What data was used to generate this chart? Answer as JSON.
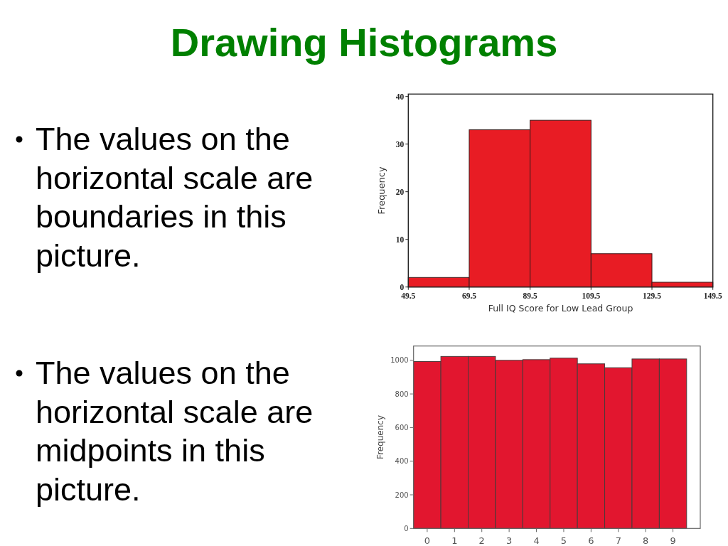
{
  "chart_data": [
    {
      "type": "other",
      "title": "Drawing Histograms",
      "annotations": [
        "The values on the horizontal scale are boundaries in this picture.",
        "The values on the horizontal scale are midpoints in this picture."
      ]
    },
    {
      "type": "histogram",
      "bins": [
        49.5,
        69.5,
        89.5,
        109.5,
        129.5,
        149.5
      ],
      "values": [
        2,
        33,
        35,
        7,
        1
      ],
      "color": "#e81c24",
      "xlim": [
        49.5,
        149.5
      ],
      "xticks": [
        49.5,
        69.5,
        89.5,
        109.5,
        129.5,
        149.5
      ],
      "ylim": [
        0,
        40.5
      ],
      "yticks": [
        0,
        10,
        20,
        30,
        40
      ],
      "xlabel": "Full IQ Score for Low Lead Group",
      "ylabel": "Frequency"
    },
    {
      "type": "histogram",
      "bins": [
        -0.5,
        0.5,
        1.5,
        2.5,
        3.5,
        4.5,
        5.5,
        6.5,
        7.5,
        8.5,
        9.5
      ],
      "values": [
        993,
        1023,
        1023,
        1000,
        1004,
        1013,
        979,
        956,
        1008,
        1008
      ],
      "color": "#e2162f",
      "xlim": [
        -0.5,
        10
      ],
      "xticks": [
        0,
        1,
        2,
        3,
        4,
        5,
        6,
        7,
        8,
        9
      ],
      "ylim": [
        0,
        1085
      ],
      "yticks": [
        0,
        200,
        400,
        600,
        800,
        1000
      ],
      "ylabel": "Frequency"
    }
  ]
}
